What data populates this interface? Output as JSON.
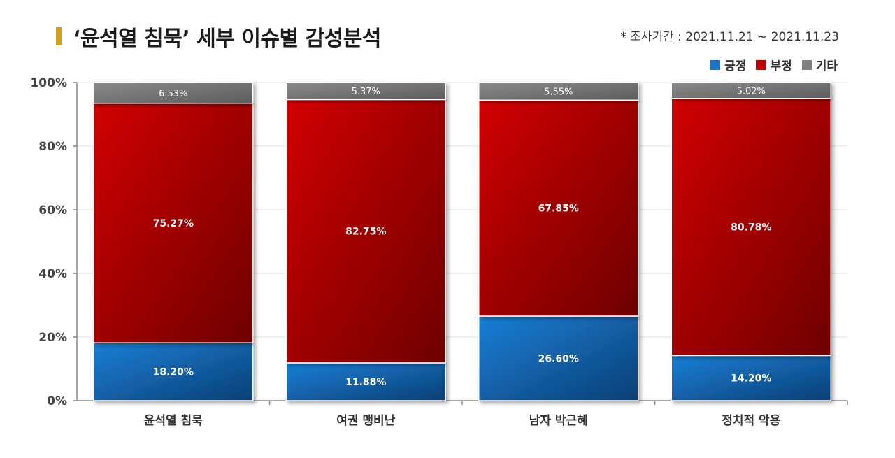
{
  "header": {
    "title": "‘윤석열 침묵’ 세부 이슈별 감성분석",
    "period": "* 조사기간 : 2021.11.21 ~ 2021.11.23"
  },
  "colors": {
    "positive": "#1a74c9",
    "negative": "#c00000",
    "other": "#7f7f7f",
    "accent": "#d4a017"
  },
  "chart_data": {
    "type": "bar",
    "stacked": true,
    "categories": [
      "윤석열 침묵",
      "여권 맹비난",
      "남자 박근혜",
      "정치적 악용"
    ],
    "series": [
      {
        "name": "긍정",
        "values": [
          18.2,
          11.88,
          26.6,
          14.2
        ],
        "labels": [
          "18.20%",
          "11.88%",
          "26.60%",
          "14.20%"
        ]
      },
      {
        "name": "부정",
        "values": [
          75.27,
          82.75,
          67.85,
          80.78
        ],
        "labels": [
          "75.27%",
          "82.75%",
          "67.85%",
          "80.78%"
        ]
      },
      {
        "name": "기타",
        "values": [
          6.53,
          5.37,
          5.55,
          5.02
        ],
        "labels": [
          "6.53%",
          "5.37%",
          "5.55%",
          "5.02%"
        ]
      }
    ],
    "ylim": [
      0,
      100
    ],
    "yticks": [
      "0%",
      "20%",
      "40%",
      "60%",
      "80%",
      "100%"
    ],
    "grid": true,
    "legend_position": "top-right"
  }
}
